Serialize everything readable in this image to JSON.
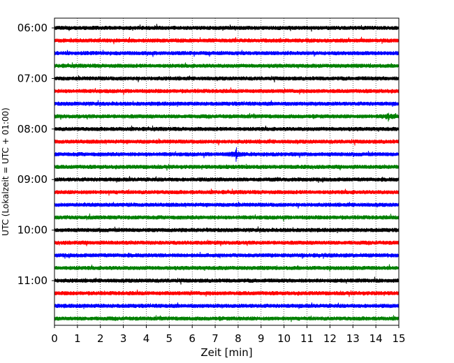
{
  "chart_data": {
    "type": "line",
    "subtype": "helicorder",
    "title": "",
    "xlabel": "Zeit  [min]",
    "ylabel": "UTC (Lokalzeit = UTC + 01:00)",
    "xlim": [
      0,
      15
    ],
    "x_ticks": [
      "0",
      "1",
      "2",
      "3",
      "4",
      "5",
      "6",
      "7",
      "8",
      "9",
      "10",
      "11",
      "12",
      "13",
      "14",
      "15"
    ],
    "y_tick_labels": [
      "06:00",
      "07:00",
      "08:00",
      "09:00",
      "10:00",
      "11:00"
    ],
    "start_time": "06:00",
    "trace_interval_minutes": 15,
    "trace_count": 24,
    "colors": [
      "#000000",
      "#ff0000",
      "#0000ff",
      "#008000"
    ],
    "grid": "vertical dotted lines at each minute",
    "events": [
      {
        "start_time": "07:45",
        "minute": 14.55,
        "amplitude": 0.55
      },
      {
        "start_time": "08:30",
        "minute": 7.92,
        "amplitude": 0.9
      }
    ]
  }
}
